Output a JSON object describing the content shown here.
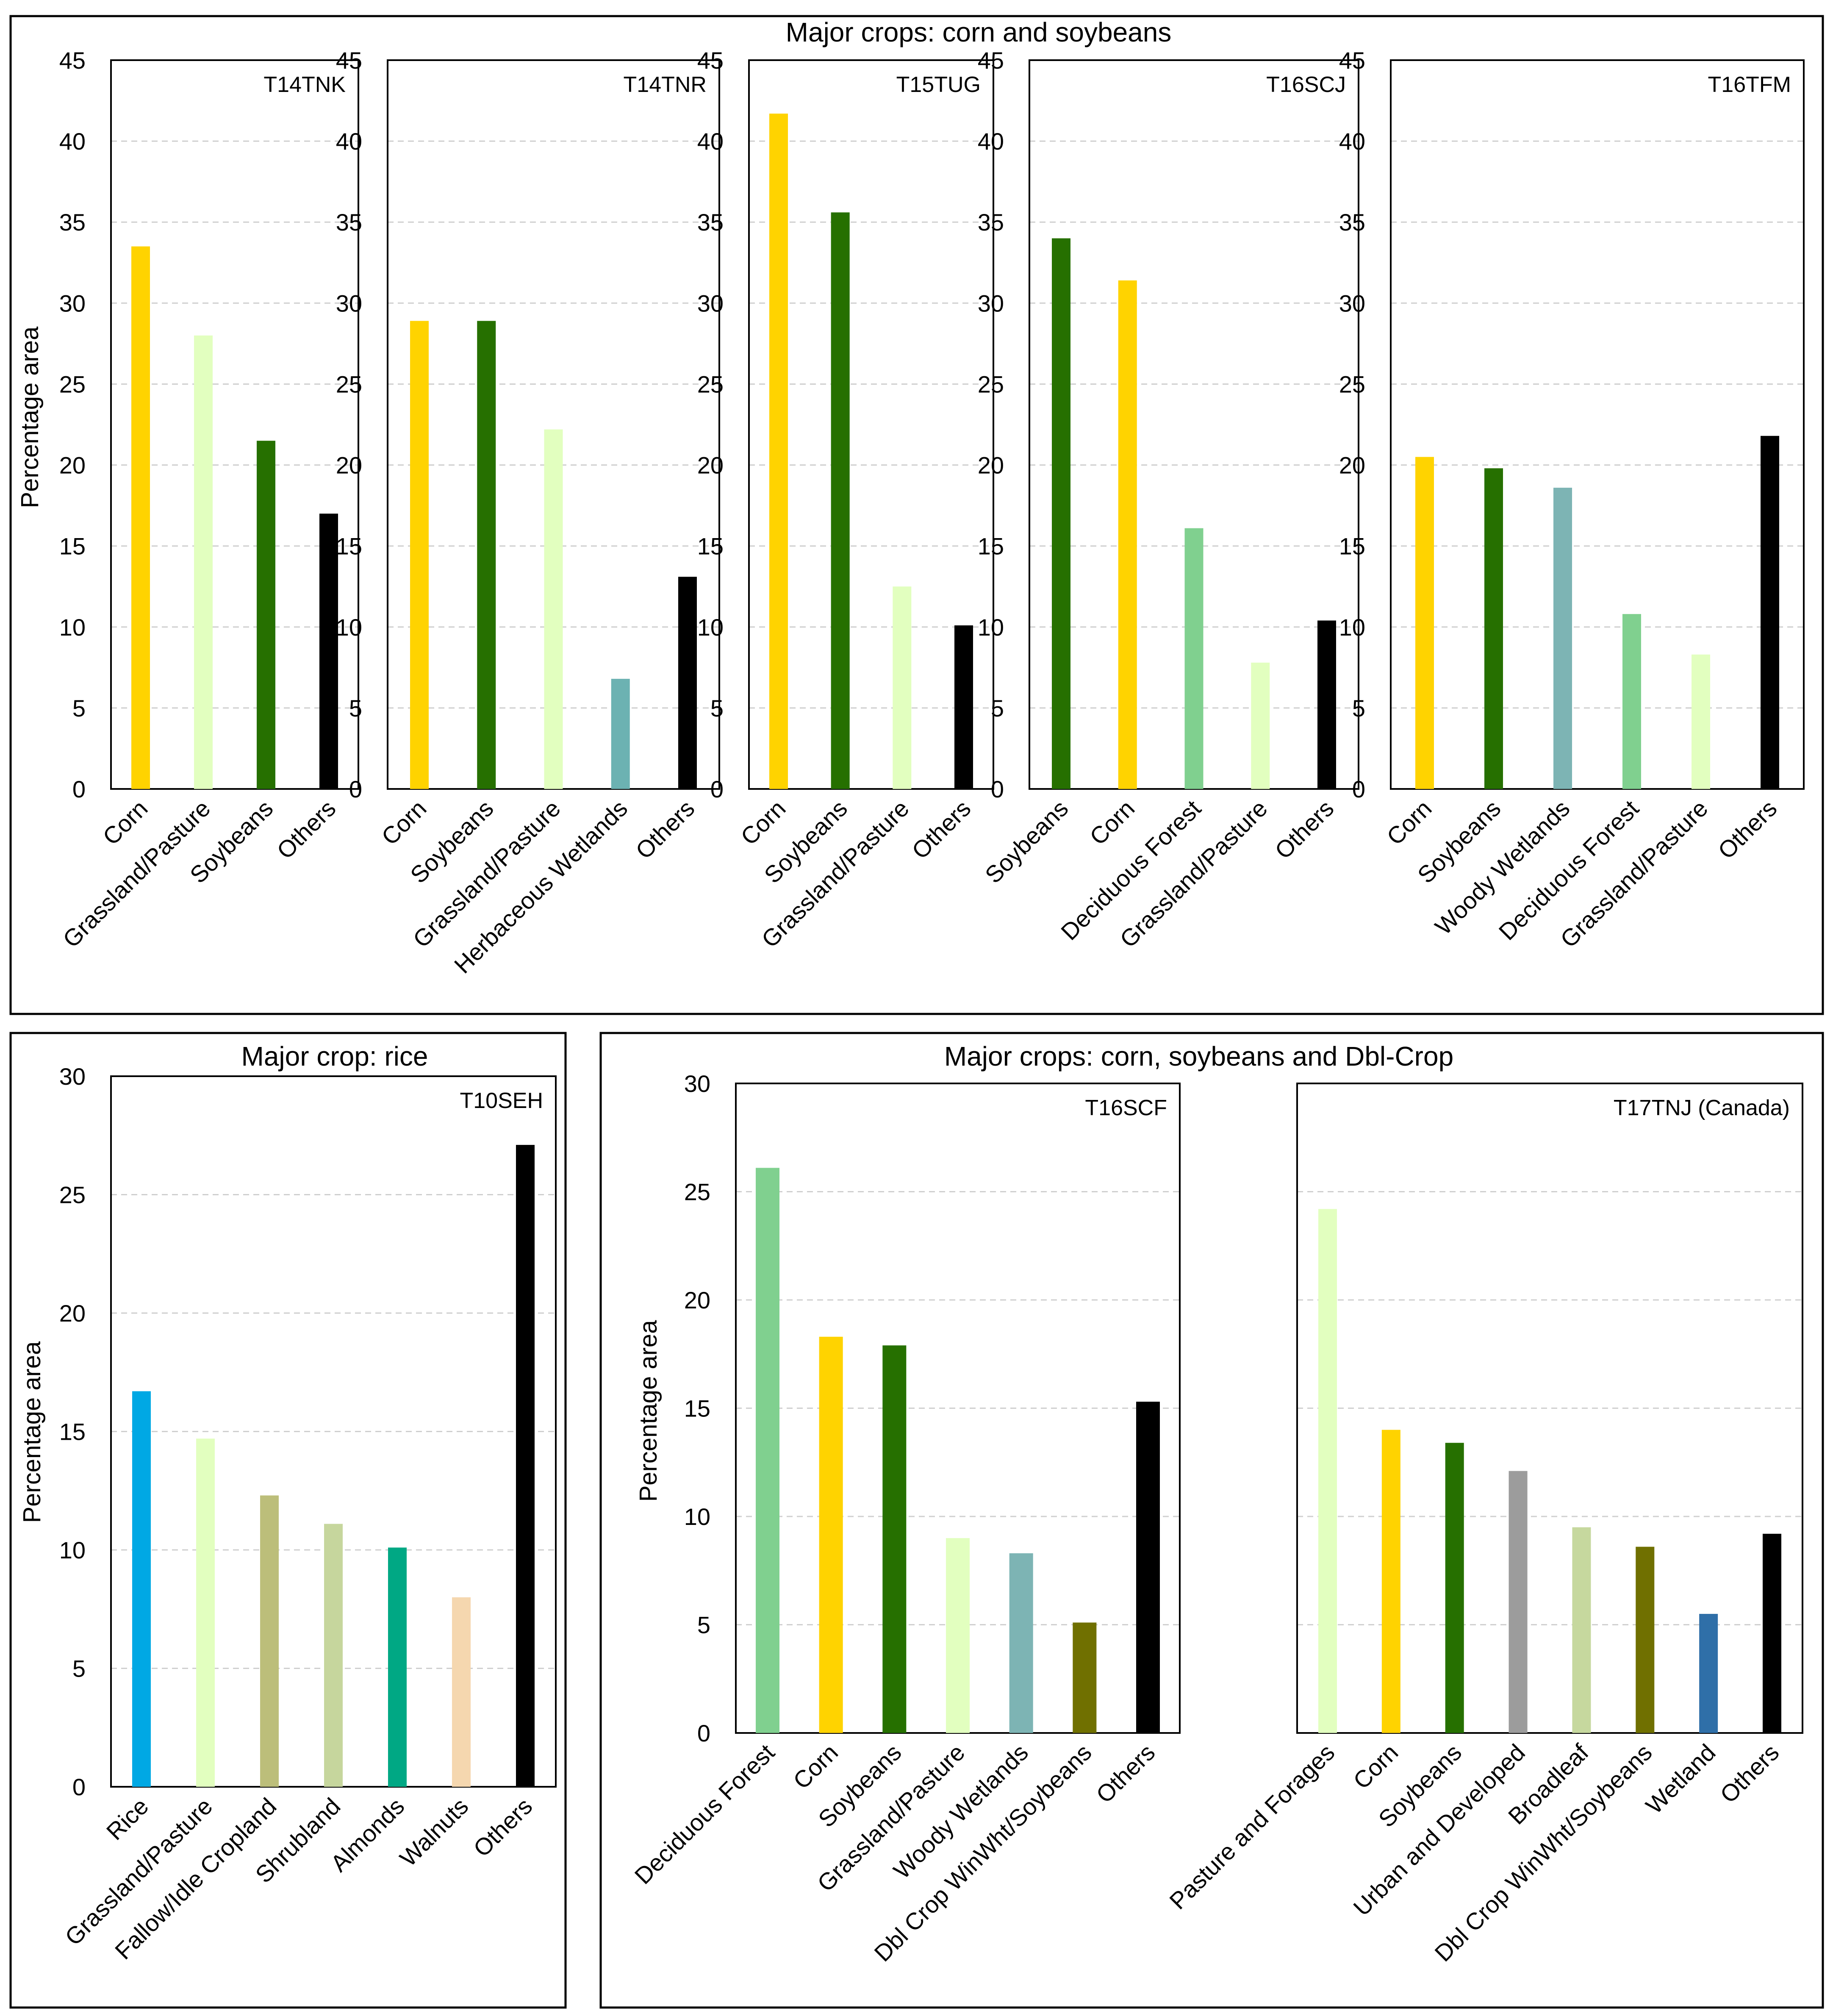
{
  "figure": {
    "y_axis_label": "Percentage area",
    "panel_titles": {
      "top": "Major crops: corn and soybeans",
      "bottom_left": "Major crop: rice",
      "bottom_right": "Major crops: corn, soybeans and Dbl-Crop"
    }
  },
  "colors": {
    "corn": "#FFD300",
    "grassland": "#E2FFBF",
    "soybeans": "#267000",
    "others": "#000000",
    "herbaceous_wetlands": "#6CB2B2",
    "woody_wetlands": "#7DB4B4",
    "deciduous_forest": "#80D08F",
    "rice": "#00A8E4",
    "fallow": "#BCBE7A",
    "shrubland": "#C6D69D",
    "almonds": "#00A884",
    "walnuts": "#F5D7AF",
    "dbl_crop": "#707000",
    "urban": "#9C9C9C",
    "broadleaf": "#C6D89E",
    "wetland": "#2F6FA8"
  },
  "chart_data": [
    {
      "type": "bar",
      "group": "top",
      "tile": "T14TNK",
      "ylim": [
        0,
        45
      ],
      "yticks": [
        0,
        5,
        10,
        15,
        20,
        25,
        30,
        35,
        40,
        45
      ],
      "categories": [
        "Corn",
        "Grassland/Pasture",
        "Soybeans",
        "Others"
      ],
      "values": [
        33.5,
        28,
        21.5,
        17
      ],
      "color_keys": [
        "corn",
        "grassland",
        "soybeans",
        "others"
      ]
    },
    {
      "type": "bar",
      "group": "top",
      "tile": "T14TNR",
      "ylim": [
        0,
        45
      ],
      "yticks": [
        0,
        5,
        10,
        15,
        20,
        25,
        30,
        35,
        40,
        45
      ],
      "categories": [
        "Corn",
        "Soybeans",
        "Grassland/Pasture",
        "Herbaceous Wetlands",
        "Others"
      ],
      "values": [
        28.9,
        28.9,
        22.2,
        6.8,
        13.1
      ],
      "color_keys": [
        "corn",
        "soybeans",
        "grassland",
        "herbaceous_wetlands",
        "others"
      ]
    },
    {
      "type": "bar",
      "group": "top",
      "tile": "T15TUG",
      "ylim": [
        0,
        45
      ],
      "yticks": [
        0,
        5,
        10,
        15,
        20,
        25,
        30,
        35,
        40,
        45
      ],
      "categories": [
        "Corn",
        "Soybeans",
        "Grassland/Pasture",
        "Others"
      ],
      "values": [
        41.7,
        35.6,
        12.5,
        10.1
      ],
      "color_keys": [
        "corn",
        "soybeans",
        "grassland",
        "others"
      ]
    },
    {
      "type": "bar",
      "group": "top",
      "tile": "T16SCJ",
      "ylim": [
        0,
        45
      ],
      "yticks": [
        0,
        5,
        10,
        15,
        20,
        25,
        30,
        35,
        40,
        45
      ],
      "categories": [
        "Soybeans",
        "Corn",
        "Deciduous Forest",
        "Grassland/Pasture",
        "Others"
      ],
      "values": [
        34,
        31.4,
        16.1,
        7.8,
        10.4
      ],
      "color_keys": [
        "soybeans",
        "corn",
        "deciduous_forest",
        "grassland",
        "others"
      ]
    },
    {
      "type": "bar",
      "group": "top",
      "tile": "T16TFM",
      "ylim": [
        0,
        45
      ],
      "yticks": [
        0,
        5,
        10,
        15,
        20,
        25,
        30,
        35,
        40,
        45
      ],
      "categories": [
        "Corn",
        "Soybeans",
        "Woody Wetlands",
        "Deciduous Forest",
        "Grassland/Pasture",
        "Others"
      ],
      "values": [
        20.5,
        19.8,
        18.6,
        10.8,
        8.3,
        21.8
      ],
      "color_keys": [
        "corn",
        "soybeans",
        "woody_wetlands",
        "deciduous_forest",
        "grassland",
        "others"
      ]
    },
    {
      "type": "bar",
      "group": "bottom_left",
      "tile": "T10SEH",
      "ylim": [
        0,
        30
      ],
      "yticks": [
        0,
        5,
        10,
        15,
        20,
        25,
        30
      ],
      "categories": [
        "Rice",
        "Grassland/Pasture",
        "Fallow/Idle Cropland",
        "Shrubland",
        "Almonds",
        "Walnuts",
        "Others"
      ],
      "values": [
        16.7,
        14.7,
        12.3,
        11.1,
        10.1,
        8,
        27.1
      ],
      "color_keys": [
        "rice",
        "grassland",
        "fallow",
        "shrubland",
        "almonds",
        "walnuts",
        "others"
      ]
    },
    {
      "type": "bar",
      "group": "bottom_right",
      "tile": "T16SCF",
      "ylim": [
        0,
        30
      ],
      "yticks": [
        0,
        5,
        10,
        15,
        20,
        25,
        30
      ],
      "categories": [
        "Deciduous Forest",
        "Corn",
        "Soybeans",
        "Grassland/Pasture",
        "Woody Wetlands",
        "Dbl Crop WinWht/Soybeans",
        "Others"
      ],
      "values": [
        26.1,
        18.3,
        17.9,
        9,
        8.3,
        5.1,
        15.3
      ],
      "color_keys": [
        "deciduous_forest",
        "corn",
        "soybeans",
        "grassland",
        "woody_wetlands",
        "dbl_crop",
        "others"
      ]
    },
    {
      "type": "bar",
      "group": "bottom_right",
      "tile": "T17TNJ (Canada)",
      "ylim": [
        0,
        30
      ],
      "yticks": [],
      "categories": [
        "Pasture and Forages",
        "Corn",
        "Soybeans",
        "Urban and Developed",
        "Broadleaf",
        "Dbl Crop WinWht/Soybeans",
        "Wetland",
        "Others"
      ],
      "values": [
        24.2,
        14,
        13.4,
        12.1,
        9.5,
        8.6,
        5.5,
        9.2
      ],
      "color_keys": [
        "grassland",
        "corn",
        "soybeans",
        "urban",
        "broadleaf",
        "dbl_crop",
        "wetland",
        "others"
      ]
    }
  ]
}
